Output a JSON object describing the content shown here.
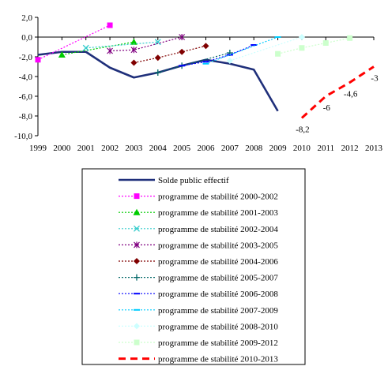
{
  "chart_data": {
    "type": "line",
    "title": "",
    "xlabel": "",
    "ylabel": "",
    "categories": [
      "1999",
      "2000",
      "2001",
      "2002",
      "2003",
      "2004",
      "2005",
      "2006",
      "2007",
      "2008",
      "2009",
      "2010",
      "2011",
      "2012",
      "2013"
    ],
    "yticks": [
      "2,0",
      "0,0",
      "-2,0",
      "-4,0",
      "-6,0",
      "-8,0",
      "-10,0"
    ],
    "ylim": [
      -10,
      2
    ],
    "grid": false,
    "legend_position": "bottom",
    "series": [
      {
        "name": "Solde public effectif",
        "color": "#1f2f7a",
        "style": "solid-thick",
        "marker": "none",
        "points": [
          [
            "1999",
            -1.8
          ],
          [
            "2000",
            -1.5
          ],
          [
            "2001",
            -1.5
          ],
          [
            "2002",
            -3.1
          ],
          [
            "2003",
            -4.1
          ],
          [
            "2004",
            -3.6
          ],
          [
            "2005",
            -2.9
          ],
          [
            "2006",
            -2.3
          ],
          [
            "2007",
            -2.7
          ],
          [
            "2008",
            -3.3
          ],
          [
            "2009",
            -7.5
          ]
        ]
      },
      {
        "name": "programme de stabilité 2000-2002",
        "color": "#ff00ff",
        "style": "dotted",
        "marker": "square",
        "points": [
          [
            "1999",
            -2.3
          ],
          [
            "2002",
            1.2
          ]
        ]
      },
      {
        "name": "programme de stabilité 2001-2003",
        "color": "#00cc00",
        "style": "dotted",
        "marker": "triangle",
        "points": [
          [
            "2000",
            -1.8
          ],
          [
            "2003",
            -0.5
          ]
        ]
      },
      {
        "name": "programme de stabilité 2002-2004",
        "color": "#33cccc",
        "style": "dotted",
        "marker": "x",
        "points": [
          [
            "2001",
            -1.1
          ],
          [
            "2004",
            -0.5
          ]
        ]
      },
      {
        "name": "programme de stabilité 2003-2005",
        "color": "#800080",
        "style": "dotted",
        "marker": "star",
        "points": [
          [
            "2002",
            -1.4
          ],
          [
            "2003",
            -1.3
          ],
          [
            "2005",
            0.0
          ]
        ]
      },
      {
        "name": "programme de stabilité 2004-2006",
        "color": "#800000",
        "style": "dotted",
        "marker": "diamond",
        "points": [
          [
            "2003",
            -2.6
          ],
          [
            "2004",
            -2.1
          ],
          [
            "2005",
            -1.5
          ],
          [
            "2006",
            -0.9
          ]
        ]
      },
      {
        "name": "programme de stabilité 2005-2007",
        "color": "#006666",
        "style": "dotted",
        "marker": "plus",
        "points": [
          [
            "2004",
            -3.6
          ],
          [
            "2005",
            -2.9
          ],
          [
            "2007",
            -1.6
          ]
        ]
      },
      {
        "name": "programme de stabilité 2006-2008",
        "color": "#0000ff",
        "style": "dotted",
        "marker": "dash",
        "points": [
          [
            "2005",
            -2.9
          ],
          [
            "2006",
            -2.5
          ],
          [
            "2007",
            -1.8
          ],
          [
            "2008",
            -0.8
          ]
        ]
      },
      {
        "name": "programme de stabilité 2007-2009",
        "color": "#00ccff",
        "style": "dotted",
        "marker": "dash",
        "points": [
          [
            "2006",
            -2.7
          ],
          [
            "2009",
            0.0
          ]
        ]
      },
      {
        "name": "programme de stabilité 2008-2010",
        "color": "#ccffff",
        "style": "dotted",
        "marker": "diamond",
        "points": [
          [
            "2007",
            -2.4
          ],
          [
            "2010",
            0.0
          ]
        ]
      },
      {
        "name": "programme de stabilité 2009-2012",
        "color": "#ccffcc",
        "style": "dotted",
        "marker": "square",
        "points": [
          [
            "2009",
            -1.7
          ],
          [
            "2010",
            -1.1
          ],
          [
            "2011",
            -0.6
          ],
          [
            "2012",
            -0.1
          ]
        ]
      },
      {
        "name": "programme de stabilité 2010-2013",
        "color": "#ff0000",
        "style": "dashed-thick",
        "marker": "none",
        "points": [
          [
            "2010",
            -8.2
          ],
          [
            "2011",
            -6.0
          ],
          [
            "2012",
            -4.6
          ],
          [
            "2013",
            -3.0
          ]
        ],
        "data_labels": [
          "-8,2",
          "-6",
          "-4,6",
          "-3"
        ]
      }
    ]
  }
}
